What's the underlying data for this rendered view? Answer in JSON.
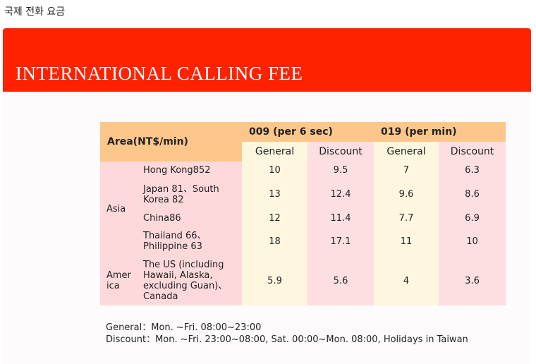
{
  "page": {
    "caption": "국제 전화 요금"
  },
  "slide": {
    "title": "INTERNATIONAL CALLING FEE"
  },
  "table": {
    "area_header": "Area(NT$/min)",
    "plans": [
      "009 (per 6 sec)",
      "019 (per min)"
    ],
    "subheaders": [
      "General",
      "Discount",
      "General",
      "Discount"
    ],
    "regions": [
      {
        "name_line1": "Asia",
        "name_line2": "",
        "rows": [
          {
            "country_line1": "Hong Kong852",
            "country_line2": "",
            "country_line3": "",
            "country_line4": "",
            "values": [
              "10",
              "9.5",
              "7",
              "6.3"
            ]
          },
          {
            "country_line1": "Japan 81、South",
            "country_line2": "Korea 82",
            "country_line3": "",
            "country_line4": "",
            "values": [
              "13",
              "12.4",
              "9.6",
              "8.6"
            ]
          },
          {
            "country_line1": "China86",
            "country_line2": "",
            "country_line3": "",
            "country_line4": "",
            "values": [
              "12",
              "11.4",
              "7.7",
              "6.9"
            ]
          },
          {
            "country_line1": "Thailand 66、",
            "country_line2": "Philippine 63",
            "country_line3": "",
            "country_line4": "",
            "values": [
              "18",
              "17.1",
              "11",
              "10"
            ]
          }
        ]
      },
      {
        "name_line1": "Amer",
        "name_line2": "ica",
        "rows": [
          {
            "country_line1": "The US (including",
            "country_line2": "Hawaii, Alaska,",
            "country_line3": "excluding Guan)、",
            "country_line4": "Canada",
            "values": [
              "5.9",
              "5.6",
              "4",
              "3.6"
            ]
          }
        ]
      }
    ]
  },
  "notes": {
    "general": "General：Mon. ~Fri. 08:00~23:00",
    "discount": "Discount：Mon. ~Fri. 23:00~08:00, Sat. 00:00~Mon. 08:00, Holidays in Taiwan"
  },
  "colors": {
    "banner": "#ff2200",
    "header_orange": "#fdc78c",
    "general_column": "#fef6df",
    "discount_column": "#fddfe2",
    "area_cells": "#fdd9dc"
  }
}
